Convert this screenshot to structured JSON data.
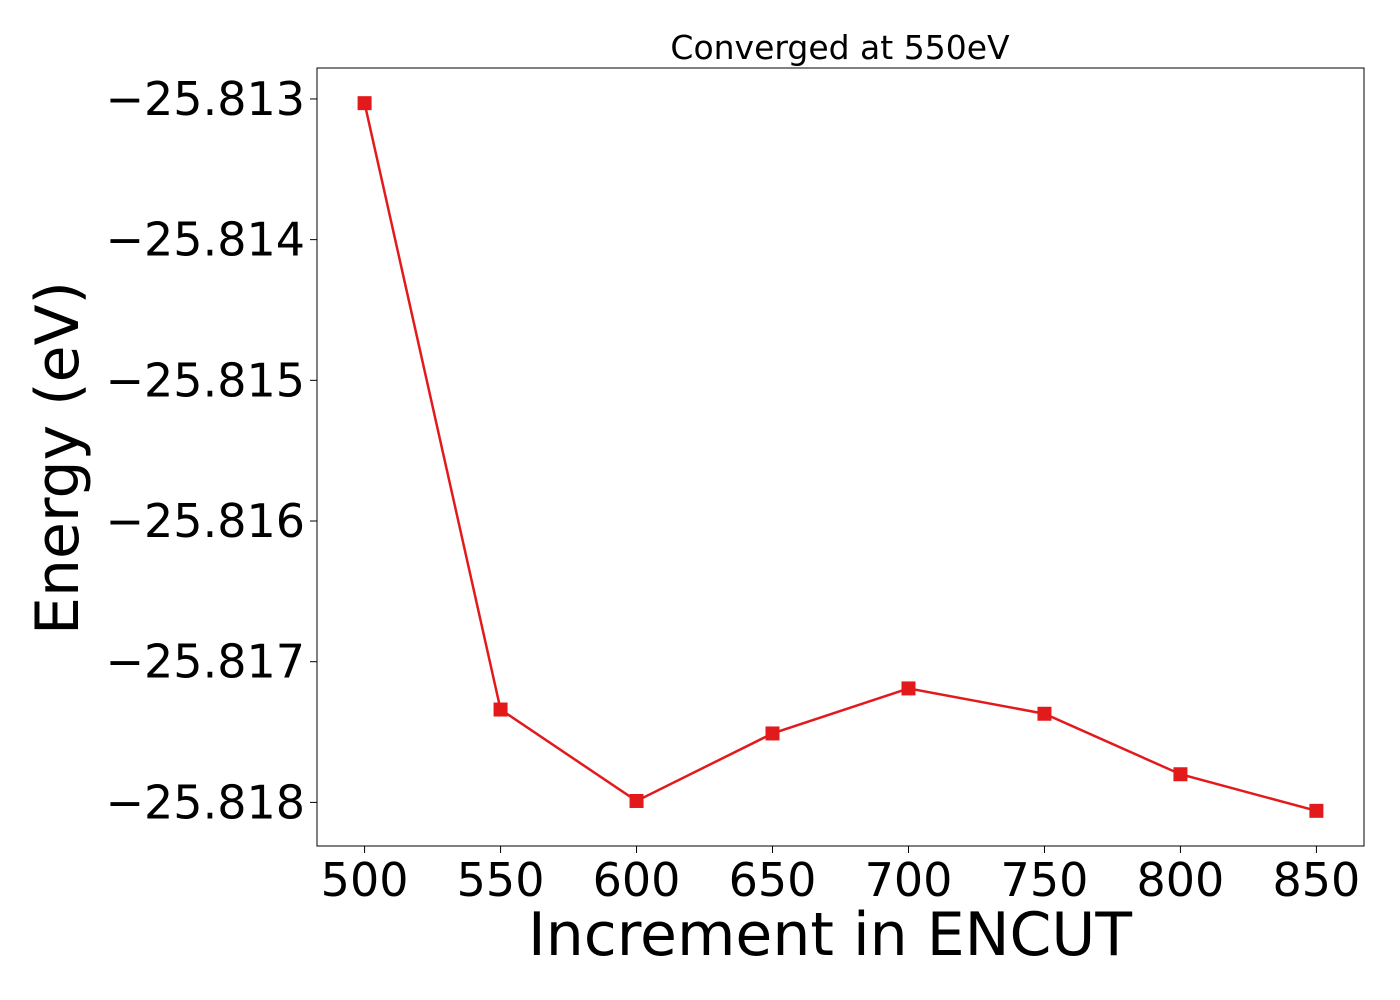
{
  "chart_data": {
    "type": "line",
    "title": "Converged at 550eV",
    "xlabel": "Increment in ENCUT",
    "ylabel": "Energy (eV)",
    "x": [
      500,
      550,
      600,
      650,
      700,
      750,
      800,
      850
    ],
    "series": [
      {
        "color": "#e31a1c",
        "marker": "square",
        "values": [
          -25.81303,
          -25.81734,
          -25.81799,
          -25.81751,
          -25.81719,
          -25.81737,
          -25.8178,
          -25.81806
        ]
      }
    ],
    "xticks": [
      "500",
      "550",
      "600",
      "650",
      "700",
      "750",
      "800",
      "850"
    ],
    "yticks": [
      -25.818,
      -25.817,
      -25.816,
      -25.815,
      -25.814,
      -25.813
    ],
    "ytick_labels": [
      "−25.818",
      "−25.817",
      "−25.816",
      "−25.815",
      "−25.814",
      "−25.813"
    ],
    "xlim": [
      482.5,
      867.5
    ],
    "ylim": [
      -25.81831,
      -25.81278
    ],
    "grid": false,
    "legend": "none"
  }
}
